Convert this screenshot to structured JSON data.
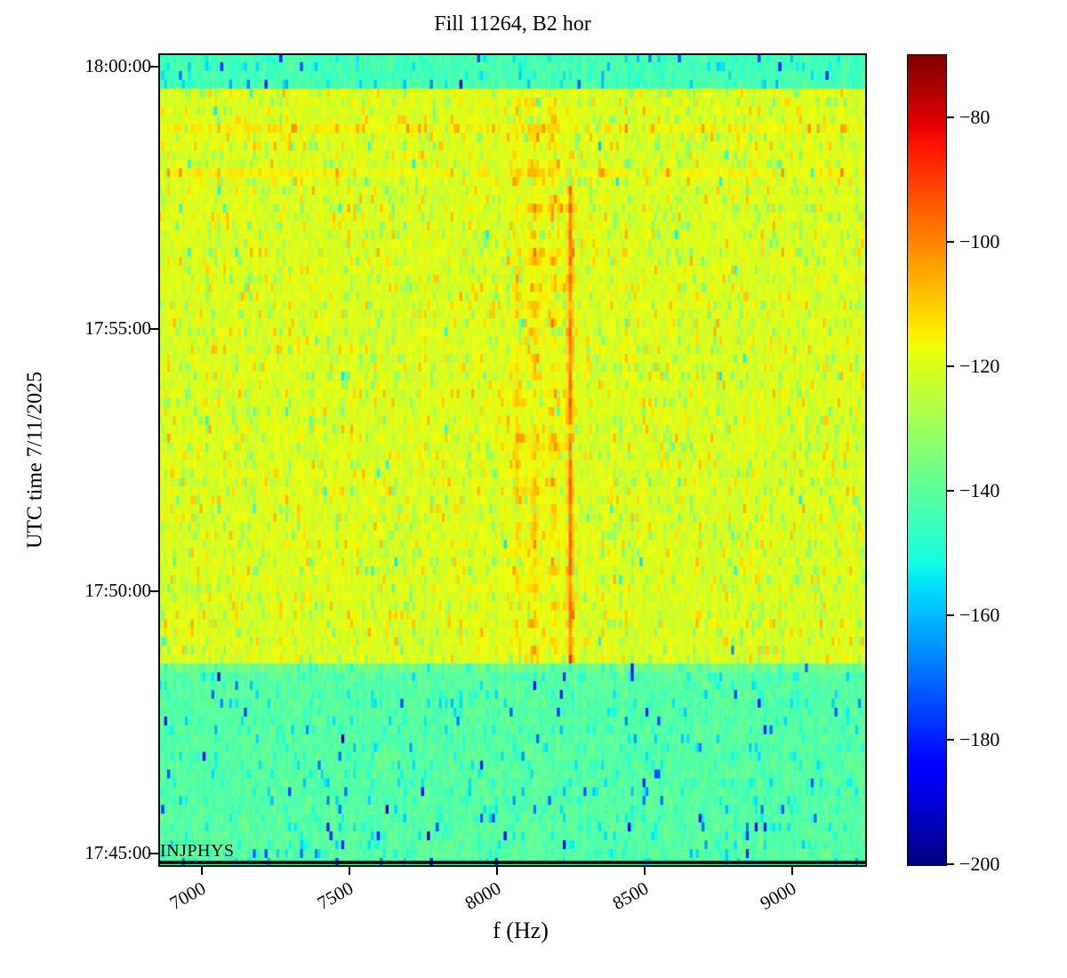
{
  "figure": {
    "title": "Fill 11264, B2 hor",
    "xlabel": "f (Hz)",
    "ylabel": "UTC time 7/11/2025",
    "annotation": "INJPHYS",
    "background_color": "#ffffff",
    "text_color": "#000000"
  },
  "chart_data": {
    "type": "heatmap",
    "subtype": "spectrogram",
    "title": "Fill 11264, B2 hor",
    "xlabel": "f (Hz)",
    "ylabel": "UTC time 7/11/2025",
    "colormap": "jet",
    "x_ticks": [
      7000,
      7500,
      8000,
      8500,
      9000
    ],
    "x_tick_labels": [
      "7000",
      "7500",
      "8000",
      "8500",
      "9000"
    ],
    "freq_range_hz": [
      6852,
      9253
    ],
    "y_tick_times": [
      "18:00:00",
      "17:55:00",
      "17:50:00",
      "17:45:00"
    ],
    "time_start": "17:44:45",
    "time_end": "18:00:15",
    "time_increases_upward": true,
    "colorbar_ticks_db": [
      -80,
      -100,
      -120,
      -140,
      -160,
      -180,
      -200
    ],
    "colorbar_tick_labels": [
      "−80",
      "−100",
      "−120",
      "−140",
      "−160",
      "−180",
      "−200"
    ],
    "colorbar_range_db": [
      -200.3,
      -69.9
    ],
    "grid": {
      "rows": 92,
      "cols": 240
    },
    "seed": 20250711,
    "bands": [
      {
        "name": "upper-quiet-band",
        "time_from": "17:59:36",
        "time_to": "18:00:15",
        "base_db": -144
      },
      {
        "name": "main-active-band",
        "time_from": "17:48:36",
        "time_to": "17:59:36",
        "base_db": -120
      },
      {
        "name": "lower-quiet-band",
        "time_from": "17:44:45",
        "time_to": "17:48:36",
        "base_db": -141
      }
    ],
    "hot_rows": [
      {
        "time": "17:58:51",
        "boost_db": 4.5
      },
      {
        "time": "17:58:03",
        "boost_db": 4.0
      },
      {
        "time": "17:48:42",
        "boost_db": 4.0
      }
    ],
    "spectral_lines": [
      {
        "f_hz": 8150,
        "boost_db": 3.5,
        "width_hz": 85,
        "time_from": "17:48:36",
        "time_to": "17:59:30",
        "kind": "broad-hump"
      },
      {
        "f_hz": 8070,
        "boost_db": 9,
        "width_hz": 10,
        "time_from": "17:48:36",
        "time_to": "17:59:30",
        "kind": "fuzzy"
      },
      {
        "f_hz": 8125,
        "boost_db": 11,
        "width_hz": 13,
        "time_from": "17:48:36",
        "time_to": "17:59:30",
        "kind": "fuzzy"
      },
      {
        "f_hz": 8193,
        "boost_db": 11,
        "width_hz": 11,
        "time_from": "17:48:36",
        "time_to": "17:59:30",
        "kind": "fuzzy"
      },
      {
        "f_hz": 8248,
        "boost_db": 24,
        "width_hz": 7,
        "time_from": "17:48:36",
        "time_to": "17:57:53",
        "kind": "sharp"
      }
    ],
    "texture": {
      "noise_db": 5.5,
      "active_orange_speck_prob": 0.085,
      "active_orange_speck_db": 9,
      "active_cool_speck_prob": 0.1,
      "active_cool_speck_db": -11,
      "active_deep_speck_prob": 0.004,
      "active_deep_speck_db": -30,
      "quiet_cool_speck_prob": 0.09,
      "quiet_cool_speck_db": -10,
      "quiet_deep_speck_prob": 0.016,
      "quiet_deep_speck_db": -24
    },
    "annotations": [
      {
        "label": "INJPHYS",
        "type": "beam-mode-marker-line",
        "time": "17:44:50",
        "line_color": "#000000"
      }
    ]
  }
}
